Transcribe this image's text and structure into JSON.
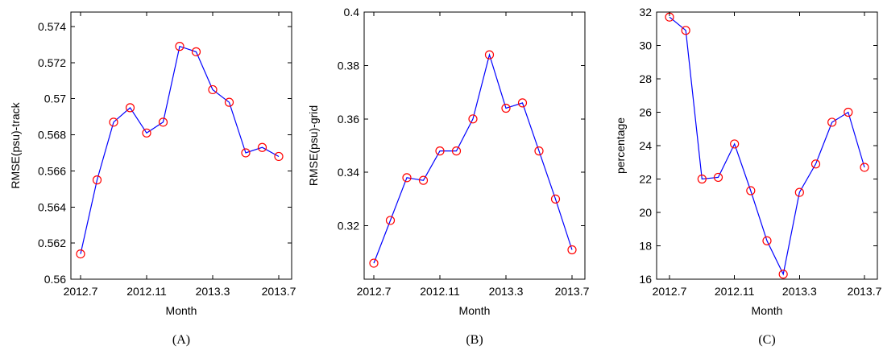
{
  "chart_data": [
    {
      "type": "line",
      "caption": "(A)",
      "xlabel": "Month",
      "ylabel": "RMSE(psu)-track",
      "x_categories": [
        "2012.7",
        "2012.8",
        "2012.9",
        "2012.10",
        "2012.11",
        "2012.12",
        "2013.1",
        "2013.2",
        "2013.3",
        "2013.4",
        "2013.5",
        "2013.6",
        "2013.7"
      ],
      "x_tick_labels": [
        "2012.7",
        "2012.11",
        "2013.3",
        "2013.7"
      ],
      "ylim": [
        0.56,
        0.5748
      ],
      "y_ticks": [
        0.56,
        0.562,
        0.564,
        0.566,
        0.568,
        0.57,
        0.572,
        0.574
      ],
      "y_tick_labels": [
        "0.56",
        "0.562",
        "0.564",
        "0.566",
        "0.568",
        "0.57",
        "0.572",
        "0.574"
      ],
      "series": [
        {
          "values": [
            0.5614,
            0.5655,
            0.5687,
            0.5695,
            0.5681,
            0.5687,
            0.5729,
            0.5726,
            0.5705,
            0.5698,
            0.567,
            0.5673,
            0.5668
          ]
        }
      ],
      "line_color": "#0000ff",
      "marker_color": "#ff0000",
      "marker": "circle",
      "grid": false
    },
    {
      "type": "line",
      "caption": "(B)",
      "xlabel": "Month",
      "ylabel": "RMSE(psu)-grid",
      "x_categories": [
        "2012.7",
        "2012.8",
        "2012.9",
        "2012.10",
        "2012.11",
        "2012.12",
        "2013.1",
        "2013.2",
        "2013.3",
        "2013.4",
        "2013.5",
        "2013.6",
        "2013.7"
      ],
      "x_tick_labels": [
        "2012.7",
        "2012.11",
        "2013.3",
        "2013.7"
      ],
      "ylim": [
        0.3,
        0.4
      ],
      "y_ticks": [
        0.32,
        0.34,
        0.36,
        0.38,
        0.4
      ],
      "y_tick_labels": [
        "0.32",
        "0.34",
        "0.36",
        "0.38",
        "0.4"
      ],
      "series": [
        {
          "values": [
            0.306,
            0.322,
            0.338,
            0.337,
            0.348,
            0.348,
            0.36,
            0.384,
            0.364,
            0.366,
            0.348,
            0.33,
            0.311
          ]
        }
      ],
      "line_color": "#0000ff",
      "marker_color": "#ff0000",
      "marker": "circle",
      "grid": false
    },
    {
      "type": "line",
      "caption": "(C)",
      "xlabel": "Month",
      "ylabel": "percentage",
      "x_categories": [
        "2012.7",
        "2012.8",
        "2012.9",
        "2012.10",
        "2012.11",
        "2012.12",
        "2013.1",
        "2013.2",
        "2013.3",
        "2013.4",
        "2013.5",
        "2013.6",
        "2013.7"
      ],
      "x_tick_labels": [
        "2012.7",
        "2012.11",
        "2013.3",
        "2013.7"
      ],
      "ylim": [
        16,
        32
      ],
      "y_ticks": [
        16,
        18,
        20,
        22,
        24,
        26,
        28,
        30,
        32
      ],
      "y_tick_labels": [
        "16",
        "18",
        "20",
        "22",
        "24",
        "26",
        "28",
        "30",
        "32"
      ],
      "series": [
        {
          "values": [
            31.7,
            30.9,
            22.0,
            22.1,
            24.1,
            21.3,
            18.3,
            16.3,
            21.2,
            22.9,
            25.4,
            26.0,
            22.7
          ]
        }
      ],
      "line_color": "#0000ff",
      "marker_color": "#ff0000",
      "marker": "circle",
      "grid": false
    }
  ]
}
